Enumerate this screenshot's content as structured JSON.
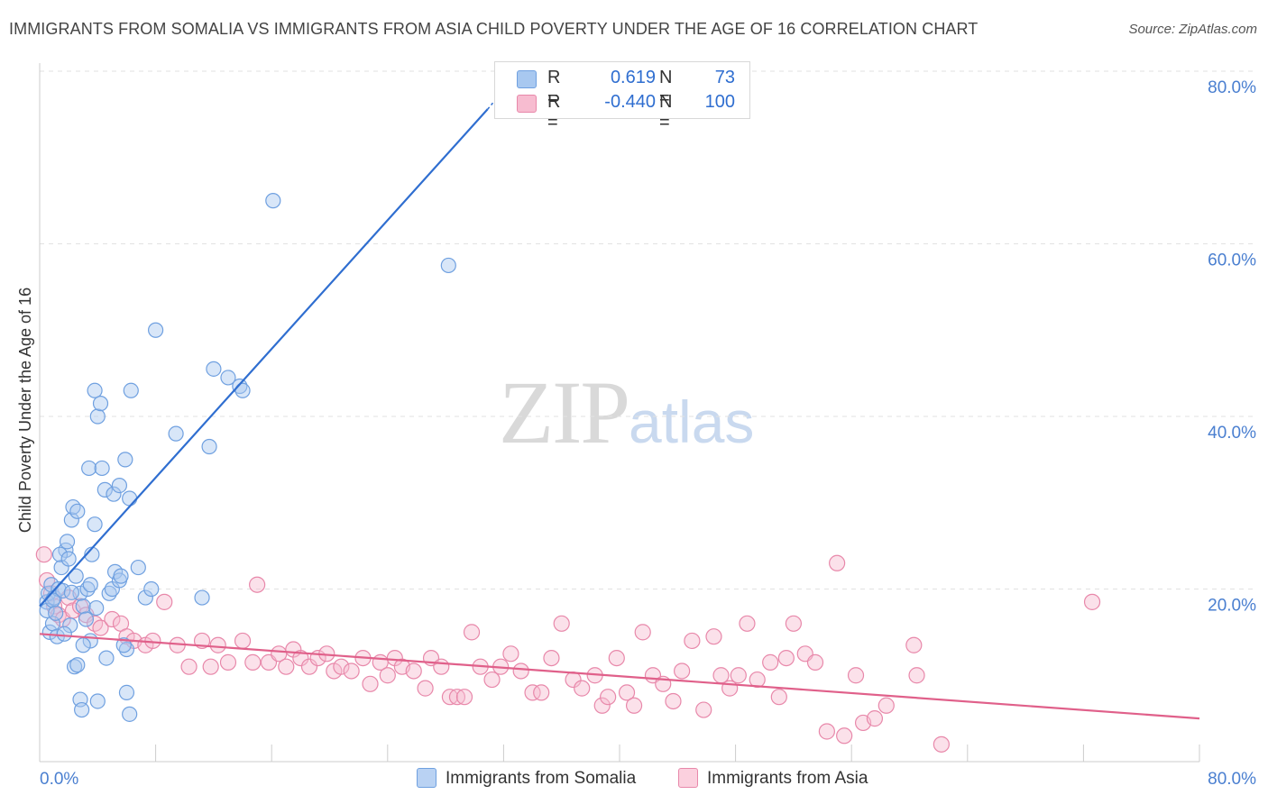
{
  "title": "IMMIGRANTS FROM SOMALIA VS IMMIGRANTS FROM ASIA CHILD POVERTY UNDER THE AGE OF 16 CORRELATION CHART",
  "source": "Source: ZipAtlas.com",
  "watermark": {
    "zip": "ZIP",
    "atlas": "atlas"
  },
  "legend": {
    "r_label": "R =",
    "n_label": "N =",
    "rows": [
      {
        "r": "0.619",
        "n": "73",
        "color": "#a8c8f0",
        "border": "#6fa0e0"
      },
      {
        "r": "-0.440",
        "n": "100",
        "color": "#f7bcd0",
        "border": "#e888aa"
      }
    ]
  },
  "bottom_legend": [
    {
      "label": "Immigrants from Somalia",
      "color": "#b9d2f3",
      "border": "#6fa0e0"
    },
    {
      "label": "Immigrants from Asia",
      "color": "#fbd0de",
      "border": "#e888aa"
    }
  ],
  "colors": {
    "somalia": "#6fa0e0",
    "somalia_fill": "#a8c8f0",
    "somalia_line": "#2f6ed0",
    "asia": "#e888aa",
    "asia_fill": "#f7bcd0",
    "asia_line": "#e0608a",
    "axis_label": "#4a7fd0"
  },
  "chart_data": {
    "type": "scatter",
    "ylabel": "Child Poverty Under the Age of 16",
    "xlim": [
      0,
      80
    ],
    "ylim": [
      0,
      80
    ],
    "x_ticks": [
      "0.0%",
      "80.0%"
    ],
    "y_ticks": [
      "20.0%",
      "40.0%",
      "60.0%",
      "80.0%"
    ],
    "y_tick_values": [
      20,
      40,
      60,
      80
    ],
    "grid": true,
    "series": [
      {
        "name": "Immigrants from Somalia",
        "trend": {
          "x1": 0,
          "y1": 18.0,
          "x2": 30.9,
          "y2": 75.6,
          "dashed_to": {
            "x": 31.6,
            "y": 77.0
          }
        },
        "points": [
          [
            0.5,
            18.5
          ],
          [
            0.6,
            19.5
          ],
          [
            0.8,
            20.5
          ],
          [
            0.5,
            17.5
          ],
          [
            0.7,
            15.0
          ],
          [
            0.9,
            16.0
          ],
          [
            1.2,
            14.5
          ],
          [
            1.0,
            19.0
          ],
          [
            1.3,
            20.0
          ],
          [
            1.5,
            22.5
          ],
          [
            1.8,
            24.5
          ],
          [
            1.4,
            24.0
          ],
          [
            1.9,
            25.5
          ],
          [
            2.0,
            23.5
          ],
          [
            2.2,
            28.0
          ],
          [
            2.3,
            29.5
          ],
          [
            2.6,
            29.0
          ],
          [
            2.5,
            21.5
          ],
          [
            2.8,
            19.5
          ],
          [
            3.0,
            18.0
          ],
          [
            3.2,
            16.5
          ],
          [
            3.5,
            14.0
          ],
          [
            2.1,
            15.8
          ],
          [
            2.4,
            11.0
          ],
          [
            2.6,
            11.2
          ],
          [
            2.8,
            7.2
          ],
          [
            2.9,
            6.0
          ],
          [
            3.0,
            13.5
          ],
          [
            3.3,
            20.0
          ],
          [
            3.5,
            20.5
          ],
          [
            3.6,
            24.0
          ],
          [
            3.8,
            27.5
          ],
          [
            3.4,
            34.0
          ],
          [
            3.8,
            43.0
          ],
          [
            4.0,
            40.0
          ],
          [
            4.2,
            41.5
          ],
          [
            4.3,
            34.0
          ],
          [
            4.5,
            31.5
          ],
          [
            4.6,
            12.0
          ],
          [
            4.8,
            19.5
          ],
          [
            5.0,
            20.0
          ],
          [
            5.2,
            22.0
          ],
          [
            5.5,
            21.0
          ],
          [
            5.6,
            21.5
          ],
          [
            5.1,
            31.0
          ],
          [
            5.5,
            32.0
          ],
          [
            5.9,
            35.0
          ],
          [
            6.2,
            30.5
          ],
          [
            6.3,
            43.0
          ],
          [
            6.0,
            13.0
          ],
          [
            5.8,
            13.5
          ],
          [
            6.0,
            8.0
          ],
          [
            6.2,
            5.5
          ],
          [
            4.0,
            7.0
          ],
          [
            6.8,
            22.5
          ],
          [
            7.3,
            19.0
          ],
          [
            7.7,
            20.0
          ],
          [
            8.0,
            50.0
          ],
          [
            9.4,
            38.0
          ],
          [
            11.2,
            19.0
          ],
          [
            11.7,
            36.5
          ],
          [
            12.0,
            45.5
          ],
          [
            13.0,
            44.5
          ],
          [
            13.8,
            43.5
          ],
          [
            14.0,
            43.0
          ],
          [
            16.1,
            65.0
          ],
          [
            28.2,
            57.5
          ],
          [
            1.6,
            19.8
          ],
          [
            2.2,
            19.6
          ],
          [
            0.9,
            18.7
          ],
          [
            1.1,
            17.2
          ],
          [
            1.7,
            14.8
          ],
          [
            3.9,
            17.8
          ]
        ]
      },
      {
        "name": "Immigrants from Asia",
        "trend": {
          "x1": 0,
          "y1": 14.8,
          "x2": 80,
          "y2": 5.0
        },
        "points": [
          [
            0.3,
            24.0
          ],
          [
            0.5,
            21.0
          ],
          [
            0.8,
            19.5
          ],
          [
            1.0,
            18.0
          ],
          [
            1.3,
            17.0
          ],
          [
            1.6,
            16.5
          ],
          [
            2.0,
            19.0
          ],
          [
            2.3,
            17.5
          ],
          [
            2.8,
            18.0
          ],
          [
            3.2,
            17.0
          ],
          [
            3.8,
            16.0
          ],
          [
            4.2,
            15.5
          ],
          [
            5.0,
            16.5
          ],
          [
            5.6,
            16.0
          ],
          [
            6.0,
            14.5
          ],
          [
            6.5,
            14.0
          ],
          [
            7.3,
            13.5
          ],
          [
            7.8,
            14.0
          ],
          [
            8.6,
            18.5
          ],
          [
            9.5,
            13.5
          ],
          [
            10.3,
            11.0
          ],
          [
            11.2,
            14.0
          ],
          [
            11.8,
            11.0
          ],
          [
            12.3,
            13.5
          ],
          [
            13.0,
            11.5
          ],
          [
            14.0,
            14.0
          ],
          [
            14.7,
            11.5
          ],
          [
            15.0,
            20.5
          ],
          [
            15.8,
            11.5
          ],
          [
            16.5,
            12.5
          ],
          [
            17.0,
            11.0
          ],
          [
            17.5,
            13.0
          ],
          [
            18.0,
            12.0
          ],
          [
            18.6,
            11.0
          ],
          [
            19.2,
            12.0
          ],
          [
            19.8,
            12.5
          ],
          [
            20.3,
            10.5
          ],
          [
            20.8,
            11.0
          ],
          [
            21.5,
            10.5
          ],
          [
            22.3,
            12.0
          ],
          [
            22.8,
            9.0
          ],
          [
            23.5,
            11.5
          ],
          [
            24.0,
            10.0
          ],
          [
            24.5,
            12.0
          ],
          [
            25.0,
            11.0
          ],
          [
            25.8,
            10.5
          ],
          [
            26.6,
            8.5
          ],
          [
            27.0,
            12.0
          ],
          [
            27.7,
            11.0
          ],
          [
            28.3,
            7.5
          ],
          [
            28.8,
            7.5
          ],
          [
            29.3,
            7.5
          ],
          [
            29.8,
            15.0
          ],
          [
            30.4,
            11.0
          ],
          [
            31.2,
            9.5
          ],
          [
            31.8,
            11.0
          ],
          [
            32.5,
            12.5
          ],
          [
            33.2,
            10.5
          ],
          [
            34.0,
            8.0
          ],
          [
            34.6,
            8.0
          ],
          [
            35.3,
            12.0
          ],
          [
            36.0,
            16.0
          ],
          [
            36.8,
            9.5
          ],
          [
            37.4,
            8.5
          ],
          [
            38.3,
            10.0
          ],
          [
            38.8,
            6.5
          ],
          [
            39.2,
            7.5
          ],
          [
            39.8,
            12.0
          ],
          [
            40.5,
            8.0
          ],
          [
            41.0,
            6.5
          ],
          [
            41.6,
            15.0
          ],
          [
            42.3,
            10.0
          ],
          [
            43.0,
            9.0
          ],
          [
            43.7,
            7.0
          ],
          [
            44.3,
            10.5
          ],
          [
            45.0,
            14.0
          ],
          [
            45.8,
            6.0
          ],
          [
            46.5,
            14.5
          ],
          [
            47.0,
            10.0
          ],
          [
            47.6,
            8.5
          ],
          [
            48.2,
            10.0
          ],
          [
            48.8,
            16.0
          ],
          [
            49.5,
            9.5
          ],
          [
            50.4,
            11.5
          ],
          [
            51.0,
            7.5
          ],
          [
            51.5,
            12.0
          ],
          [
            52.0,
            16.0
          ],
          [
            52.8,
            12.5
          ],
          [
            53.5,
            11.5
          ],
          [
            54.3,
            3.5
          ],
          [
            55.0,
            23.0
          ],
          [
            55.5,
            3.0
          ],
          [
            56.3,
            10.0
          ],
          [
            56.8,
            4.5
          ],
          [
            57.6,
            5.0
          ],
          [
            58.4,
            6.5
          ],
          [
            60.3,
            13.5
          ],
          [
            60.5,
            10.0
          ],
          [
            62.2,
            2.0
          ],
          [
            72.6,
            18.5
          ]
        ]
      }
    ]
  }
}
